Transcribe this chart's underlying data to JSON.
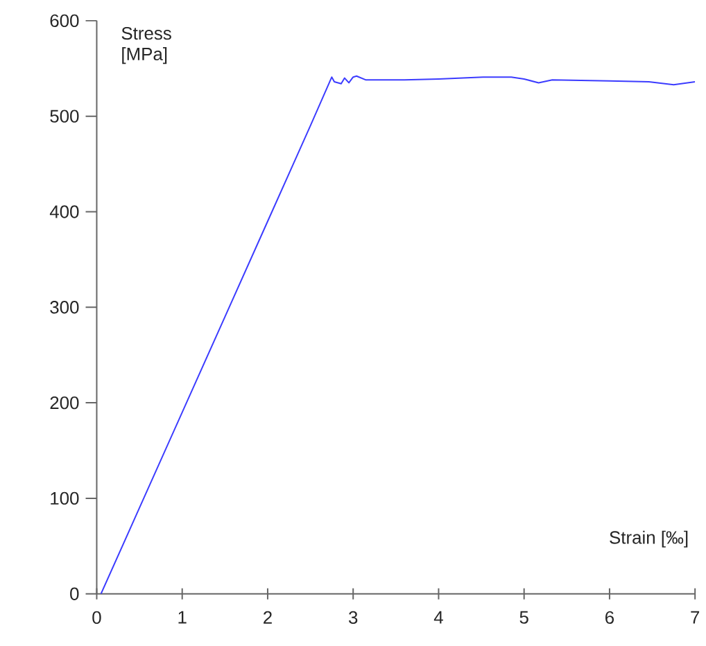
{
  "chart_data": {
    "type": "line",
    "xlabel": "Strain [‰]",
    "ylabel": "Stress [MPa]",
    "series": [
      {
        "color": "#3b3bff",
        "x": [
          0.05,
          0.5,
          1.0,
          1.5,
          2.0,
          2.5,
          2.75,
          2.78,
          2.86,
          2.9,
          2.95,
          3.0,
          3.04,
          3.15,
          3.6,
          4.0,
          4.52,
          4.85,
          5.0,
          5.17,
          5.33,
          6.0,
          6.46,
          6.75,
          7.0
        ],
        "values": [
          0,
          90,
          190,
          290,
          390,
          490,
          541,
          536,
          534,
          540,
          535,
          541,
          542,
          538,
          538,
          539,
          541,
          541,
          539,
          535,
          538,
          537,
          536,
          533,
          536
        ]
      }
    ],
    "xlim": [
      0,
      7
    ],
    "ylim": [
      0,
      600
    ],
    "xticks": [
      0,
      1,
      2,
      3,
      4,
      5,
      6,
      7
    ],
    "yticks": [
      0,
      100,
      200,
      300,
      400,
      500,
      600
    ],
    "grid": false,
    "marker": "none",
    "line_style": "solid"
  }
}
